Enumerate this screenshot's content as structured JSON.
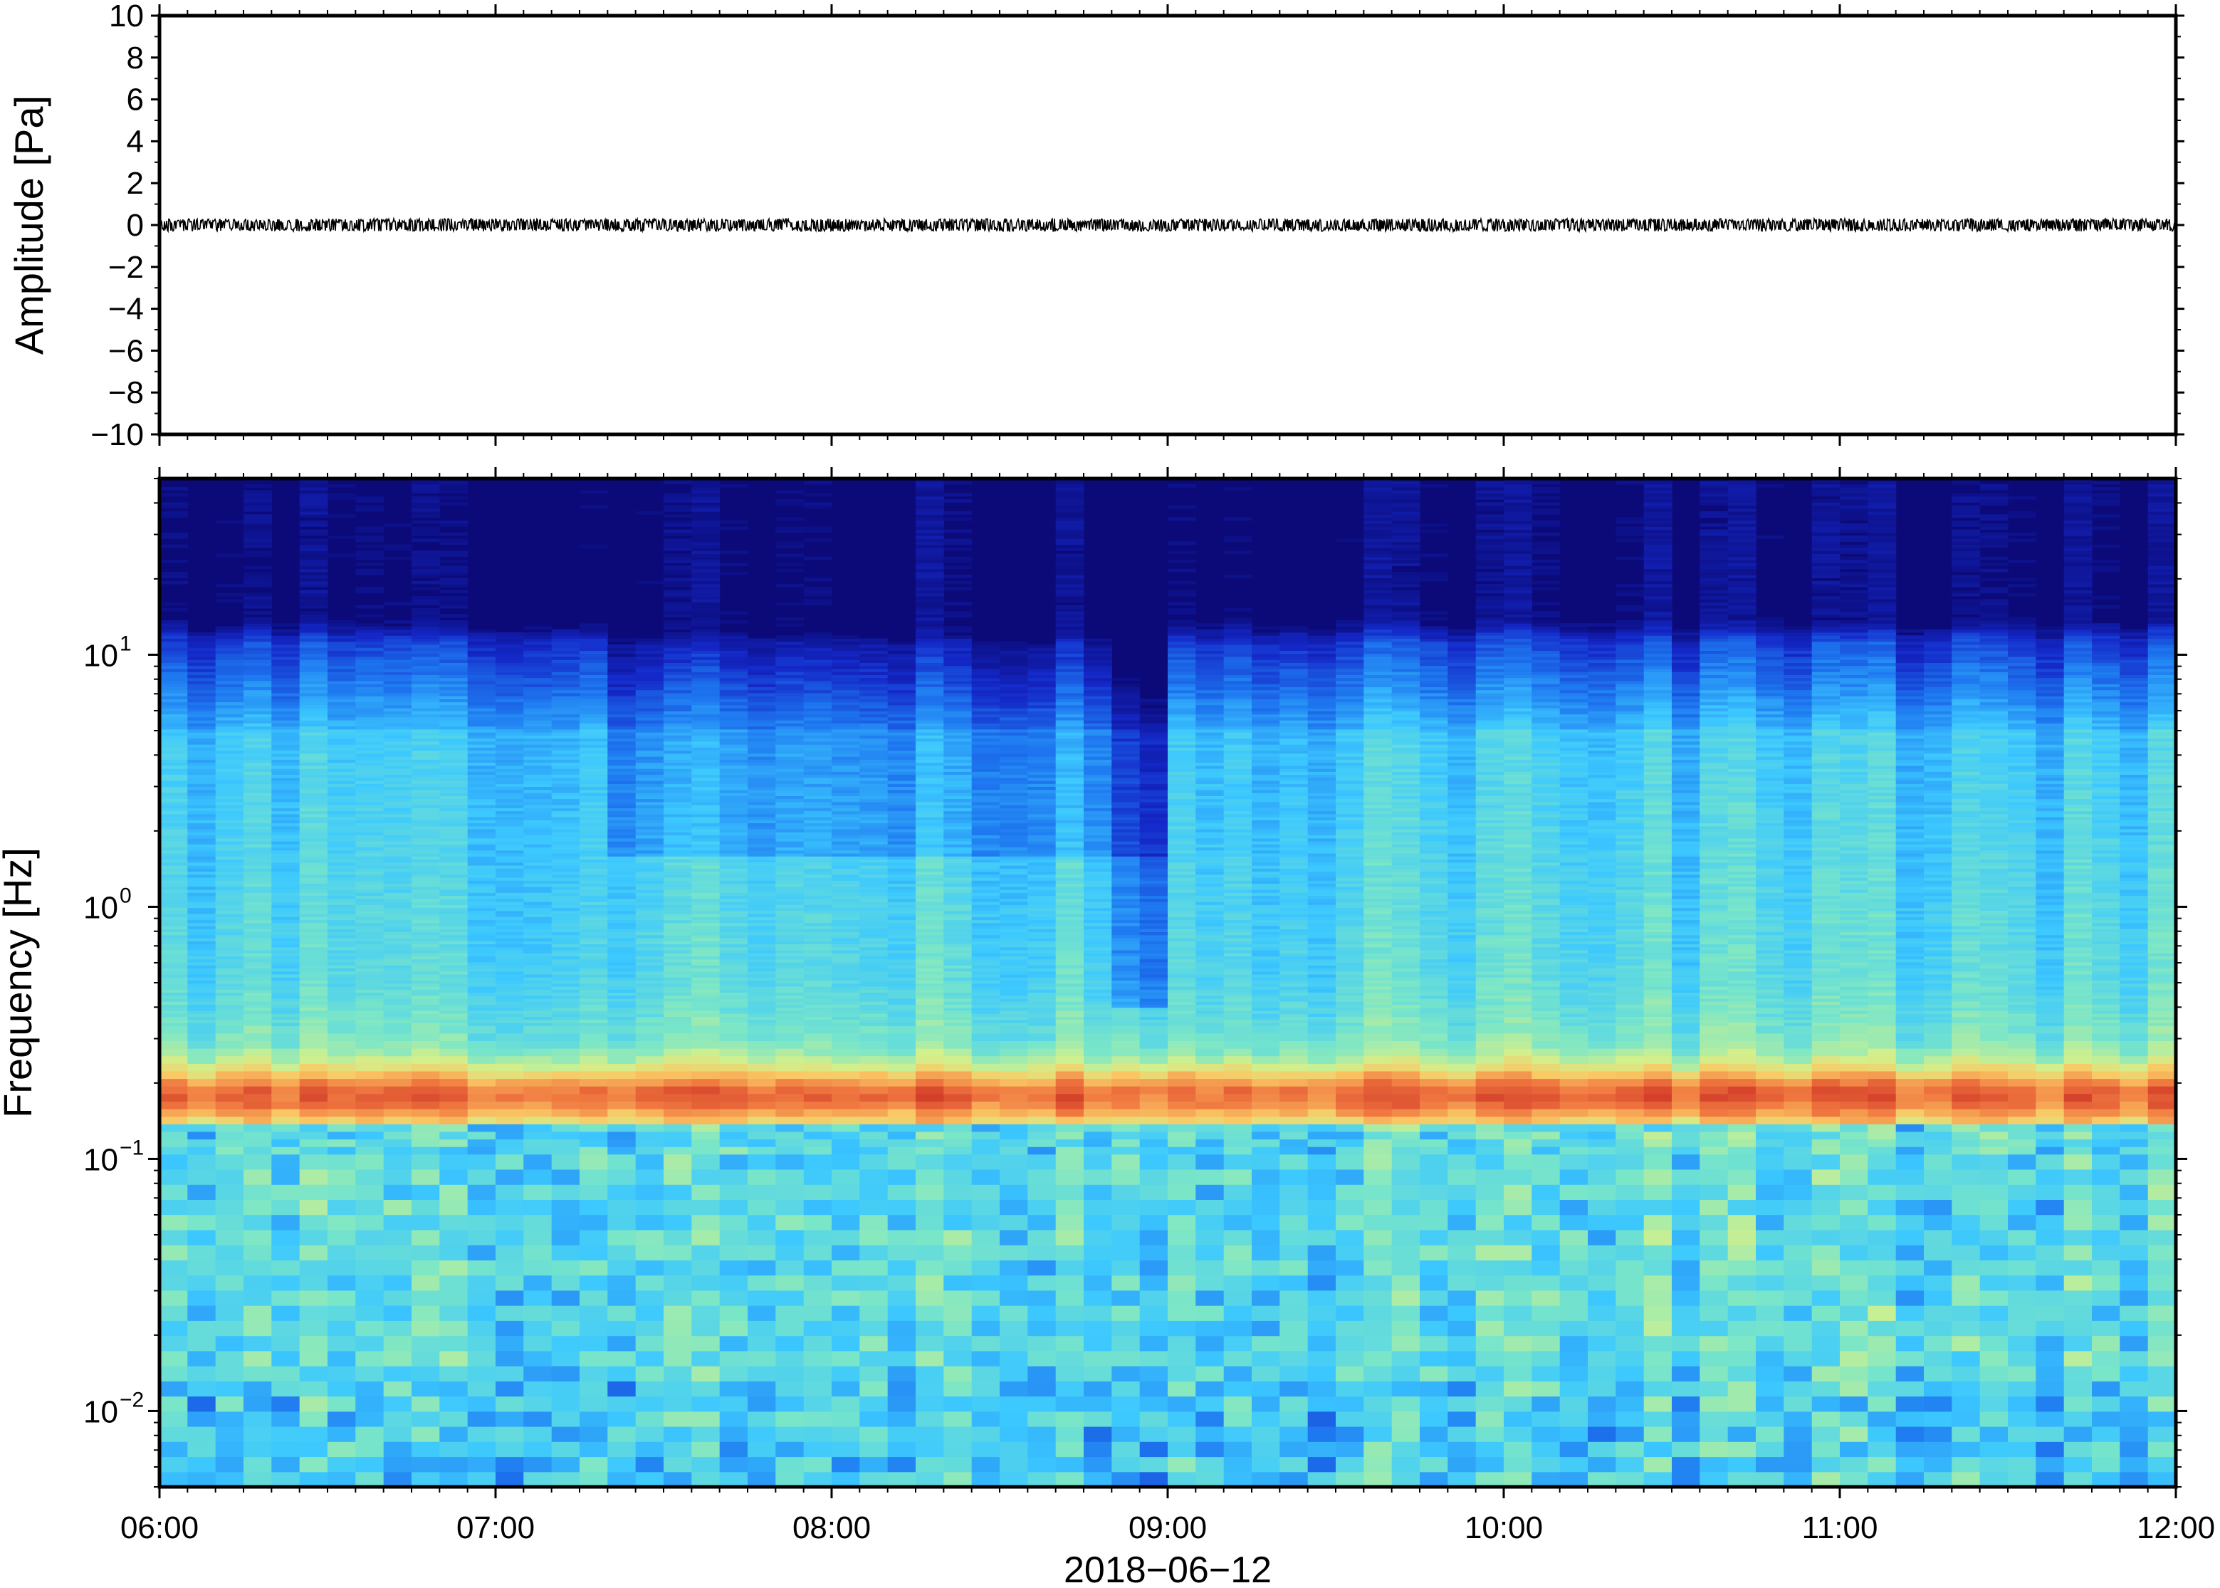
{
  "chart_data": [
    {
      "type": "line",
      "title": "",
      "ylabel": "Amplitude [Pa]",
      "xlabel": "",
      "ylim": [
        -10,
        10
      ],
      "yticks": [
        10,
        8,
        6,
        4,
        2,
        0,
        -2,
        -4,
        -6,
        -8,
        -10
      ],
      "ytick_labels": [
        "10",
        "8",
        "6",
        "4",
        "2",
        "0",
        "−2",
        "−4",
        "−6",
        "−8",
        "−10"
      ],
      "xlim": [
        "06:00",
        "12:00"
      ],
      "series": [
        {
          "values_description_free": true,
          "mean": 0,
          "peak_abs": 0.3,
          "color": "#000000"
        }
      ],
      "grid": false
    },
    {
      "type": "heatmap",
      "title": "",
      "ylabel": "Frequency [Hz]",
      "xlabel": "2018−06−12",
      "yscale": "log",
      "ylim": [
        0.005,
        50
      ],
      "yticks": [
        {
          "value": 10,
          "base": "10",
          "exp": "1"
        },
        {
          "value": 1,
          "base": "10",
          "exp": "0"
        },
        {
          "value": 0.1,
          "base": "10",
          "exp": "−1"
        },
        {
          "value": 0.01,
          "base": "10",
          "exp": "−2"
        }
      ],
      "xlim": [
        "06:00",
        "12:00"
      ],
      "xticks": [
        "06:00",
        "07:00",
        "08:00",
        "09:00",
        "10:00",
        "11:00",
        "12:00"
      ],
      "colormap": [
        "#0b0a78",
        "#1428c8",
        "#1e78f0",
        "#3cc8ff",
        "#7ae6c8",
        "#d2f08c",
        "#fac864",
        "#f07840",
        "#d23c28"
      ],
      "microbarom_band_hz": [
        0.14,
        0.25
      ],
      "microbarom_peak_hz": 0.18,
      "low_power_event_time": "08:55",
      "grid": false
    }
  ]
}
